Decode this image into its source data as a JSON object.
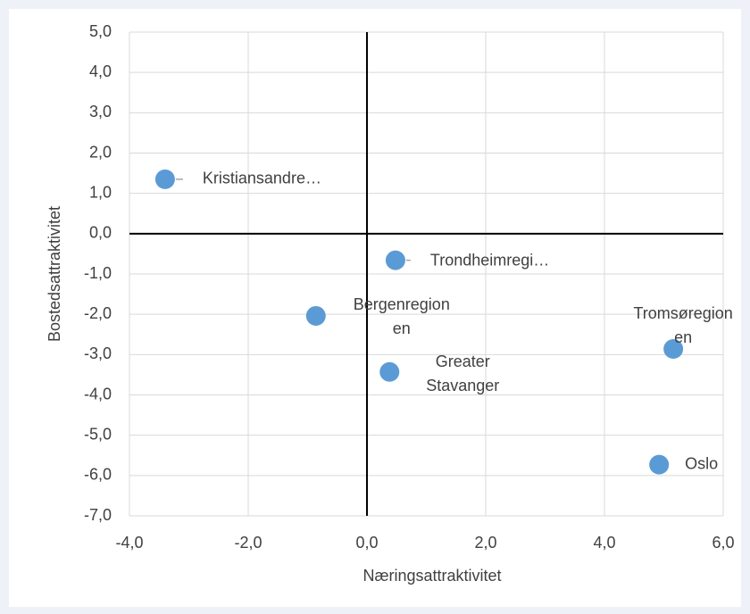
{
  "chart_data": {
    "type": "scatter",
    "xlabel": "Næringsattraktivitet",
    "ylabel": "Bostedsattraktivitet",
    "x": [
      -3.4,
      0.48,
      -0.86,
      0.38,
      5.16,
      4.92
    ],
    "y": [
      1.35,
      -0.66,
      -2.04,
      -3.43,
      -2.86,
      -5.73
    ],
    "labels": [
      "Kristiansandre…",
      "Trondheimregi…",
      "Bergenregion\nen",
      "Greater\nStavanger",
      "Tromsøregion\nen",
      "Oslo"
    ],
    "color": "#5b9bd5",
    "xlim": [
      -4,
      6
    ],
    "ylim": [
      -7,
      5
    ],
    "xticks": [
      {
        "value": -4,
        "label": "-4,0"
      },
      {
        "value": -2,
        "label": "-2,0"
      },
      {
        "value": 0,
        "label": "0,0"
      },
      {
        "value": 2,
        "label": "2,0"
      },
      {
        "value": 4,
        "label": "4,0"
      },
      {
        "value": 6,
        "label": "6,0"
      }
    ],
    "yticks": [
      {
        "value": -7,
        "label": "-7,0"
      },
      {
        "value": -6,
        "label": "-6,0"
      },
      {
        "value": -5,
        "label": "-5,0"
      },
      {
        "value": -4,
        "label": "-4,0"
      },
      {
        "value": -3,
        "label": "-3,0"
      },
      {
        "value": -2,
        "label": "-2,0"
      },
      {
        "value": -1,
        "label": "-1,0"
      },
      {
        "value": 0,
        "label": "0,0"
      },
      {
        "value": 1,
        "label": "1,0"
      },
      {
        "value": 2,
        "label": "2,0"
      },
      {
        "value": 3,
        "label": "3,0"
      },
      {
        "value": 4,
        "label": "4,0"
      },
      {
        "value": 5,
        "label": "5,0"
      }
    ],
    "grid": true
  }
}
